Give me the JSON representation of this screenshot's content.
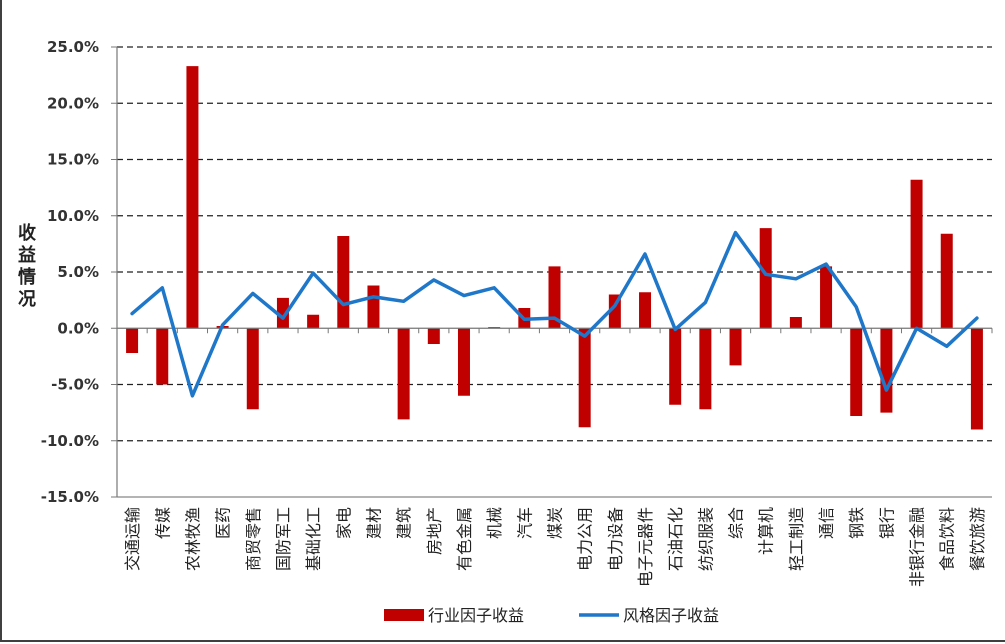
{
  "chart_data": {
    "type": "bar",
    "title": "",
    "ylabel": "收益情况",
    "xlabel": "",
    "ylim": [
      -0.15,
      0.25
    ],
    "yticks": [
      -0.15,
      -0.1,
      -0.05,
      0.0,
      0.05,
      0.1,
      0.15,
      0.2,
      0.25
    ],
    "ytick_labels": [
      "-15.0%",
      "-10.0%",
      "-5.0%",
      "0.0%",
      "5.0%",
      "10.0%",
      "15.0%",
      "20.0%",
      "25.0%"
    ],
    "grid": "horizontal-dashed",
    "legend_position": "bottom",
    "categories": [
      "交通运输",
      "传媒",
      "农林牧渔",
      "医药",
      "商贸零售",
      "国防军工",
      "基础化工",
      "家电",
      "建材",
      "建筑",
      "房地产",
      "有色金属",
      "机械",
      "汽车",
      "煤炭",
      "电力公用",
      "电力设备",
      "电子元器件",
      "石油石化",
      "纺织服装",
      "综合",
      "计算机",
      "轻工制造",
      "通信",
      "钢铁",
      "银行",
      "非银行金融",
      "食品饮料",
      "餐饮旅游"
    ],
    "series": [
      {
        "name": "行业因子收益",
        "type": "bar",
        "color": "#C00000",
        "values": [
          -0.022,
          -0.05,
          0.233,
          0.002,
          -0.072,
          0.027,
          0.012,
          0.082,
          0.038,
          -0.081,
          -0.014,
          -0.06,
          0.001,
          0.018,
          0.055,
          -0.088,
          0.03,
          0.032,
          -0.068,
          -0.072,
          -0.033,
          0.089,
          0.01,
          0.055,
          -0.078,
          -0.075,
          0.132,
          0.084,
          -0.09
        ]
      },
      {
        "name": "风格因子收益",
        "type": "line",
        "color": "#1F77C9",
        "values": [
          0.013,
          0.036,
          -0.06,
          0.003,
          0.031,
          0.009,
          0.049,
          0.021,
          0.028,
          0.024,
          0.043,
          0.029,
          0.036,
          0.008,
          0.009,
          -0.007,
          0.02,
          0.066,
          -0.001,
          0.023,
          0.085,
          0.048,
          0.044,
          0.057,
          0.019,
          -0.055,
          0.0,
          -0.016,
          0.009
        ]
      }
    ]
  }
}
